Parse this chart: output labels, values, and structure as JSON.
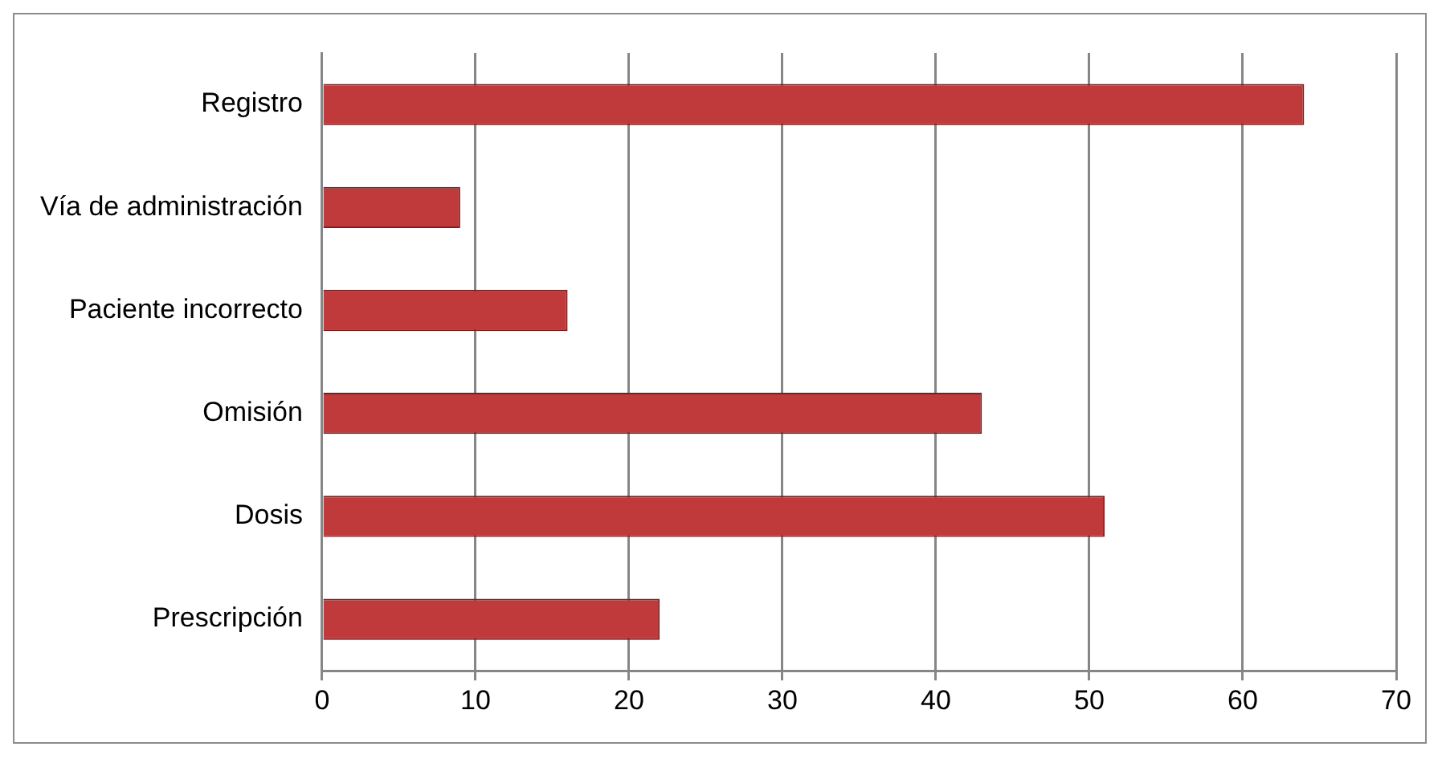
{
  "chart_data": {
    "type": "bar",
    "orientation": "horizontal",
    "categories": [
      "Registro",
      "Vía de administración",
      "Paciente incorrecto",
      "Omisión",
      "Dosis",
      "Prescripción"
    ],
    "values": [
      64,
      9,
      16,
      43,
      51,
      22
    ],
    "color": "#c0393b",
    "xlim": [
      0,
      70
    ],
    "xticks": [
      0,
      10,
      20,
      30,
      40,
      50,
      60,
      70
    ],
    "grid": "x"
  }
}
